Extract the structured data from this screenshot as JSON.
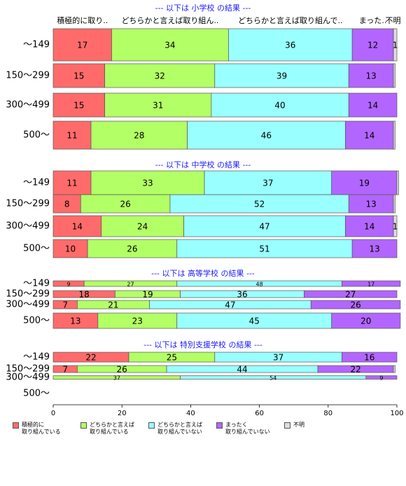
{
  "chart_data": [
    {
      "type": "bar",
      "orientation": "horizontal",
      "stacked": true,
      "title": "--- 以下は 小学校 の結果 ---",
      "segment_headers": [
        "積極的に取り..",
        "どちらかと言えば取り組ん..",
        "どちらかと言えば取り組んで..",
        "まった..",
        "不明"
      ],
      "categories": [
        "〜149",
        "150〜299",
        "300〜499",
        "500〜"
      ],
      "xlim": [
        0,
        100
      ],
      "series": [
        {
          "name": "積極的に\n取り組んでいる",
          "color": "#ff6b6b",
          "values": [
            17,
            15,
            15,
            11
          ]
        },
        {
          "name": "どちらかと言えば\n取り組んでいる",
          "color": "#b3ff66",
          "values": [
            34,
            32,
            31,
            28
          ]
        },
        {
          "name": "どちらかと言えば\n取り組んでいない",
          "color": "#99ffff",
          "values": [
            36,
            39,
            40,
            46
          ]
        },
        {
          "name": "まったく\n取り組んでいない",
          "color": "#b266ff",
          "values": [
            12,
            13,
            14,
            14
          ]
        },
        {
          "name": "不明",
          "color": "#dddddd",
          "values": [
            1,
            0.5,
            0,
            0.5
          ]
        }
      ]
    },
    {
      "type": "bar",
      "orientation": "horizontal",
      "stacked": true,
      "title": "--- 以下は 中学校 の結果 ---",
      "categories": [
        "〜149",
        "150〜299",
        "300〜499",
        "500〜"
      ],
      "xlim": [
        0,
        100
      ],
      "series": [
        {
          "name": "積極的に\n取り組んでいる",
          "color": "#ff6b6b",
          "values": [
            11,
            8,
            14,
            10
          ]
        },
        {
          "name": "どちらかと言えば\n取り組んでいる",
          "color": "#b3ff66",
          "values": [
            33,
            26,
            24,
            26
          ]
        },
        {
          "name": "どちらかと言えば\n取り組んでいない",
          "color": "#99ffff",
          "values": [
            37,
            52,
            47,
            51
          ]
        },
        {
          "name": "まったく\n取り組んでいない",
          "color": "#b266ff",
          "values": [
            19,
            13,
            14,
            13
          ]
        },
        {
          "name": "不明",
          "color": "#dddddd",
          "values": [
            0.5,
            0.5,
            1,
            0
          ]
        }
      ]
    },
    {
      "type": "bar",
      "orientation": "horizontal",
      "stacked": true,
      "title": "--- 以下は 高等学校 の結果 ---",
      "categories": [
        "〜149",
        "150〜299",
        "300〜499",
        "500〜"
      ],
      "xlim": [
        0,
        100
      ],
      "series": [
        {
          "name": "積極的に\n取り組んでいる",
          "color": "#ff6b6b",
          "values": [
            9,
            18,
            7,
            13
          ]
        },
        {
          "name": "どちらかと言えば\n取り組んでいる",
          "color": "#b3ff66",
          "values": [
            27,
            19,
            21,
            23
          ]
        },
        {
          "name": "どちらかと言えば\n取り組んでいない",
          "color": "#99ffff",
          "values": [
            48,
            36,
            47,
            45
          ]
        },
        {
          "name": "まったく\n取り組んでいない",
          "color": "#b266ff",
          "values": [
            17,
            27,
            26,
            20
          ]
        },
        {
          "name": "不明",
          "color": "#dddddd",
          "values": [
            0,
            0,
            0,
            0
          ]
        }
      ]
    },
    {
      "type": "bar",
      "orientation": "horizontal",
      "stacked": true,
      "title": "--- 以下は 特別支援学校 の結果 ---",
      "categories": [
        "〜149",
        "150〜299",
        "300〜499",
        "500〜"
      ],
      "xlim": [
        0,
        100
      ],
      "xticks": [
        0,
        20,
        40,
        60,
        80,
        100
      ],
      "series": [
        {
          "name": "積極的に\n取り組んでいる",
          "color": "#ff6b6b",
          "values": [
            22,
            7,
            0,
            null
          ]
        },
        {
          "name": "どちらかと言えば\n取り組んでいる",
          "color": "#b3ff66",
          "values": [
            25,
            26,
            37,
            null
          ]
        },
        {
          "name": "どちらかと言えば\n取り組んでいない",
          "color": "#99ffff",
          "values": [
            37,
            44,
            54,
            null
          ]
        },
        {
          "name": "まったく\n取り組んでいない",
          "color": "#b266ff",
          "values": [
            16,
            22,
            9,
            null
          ]
        },
        {
          "name": "不明",
          "color": "#dddddd",
          "values": [
            0,
            0.5,
            0,
            null
          ]
        }
      ]
    }
  ]
}
